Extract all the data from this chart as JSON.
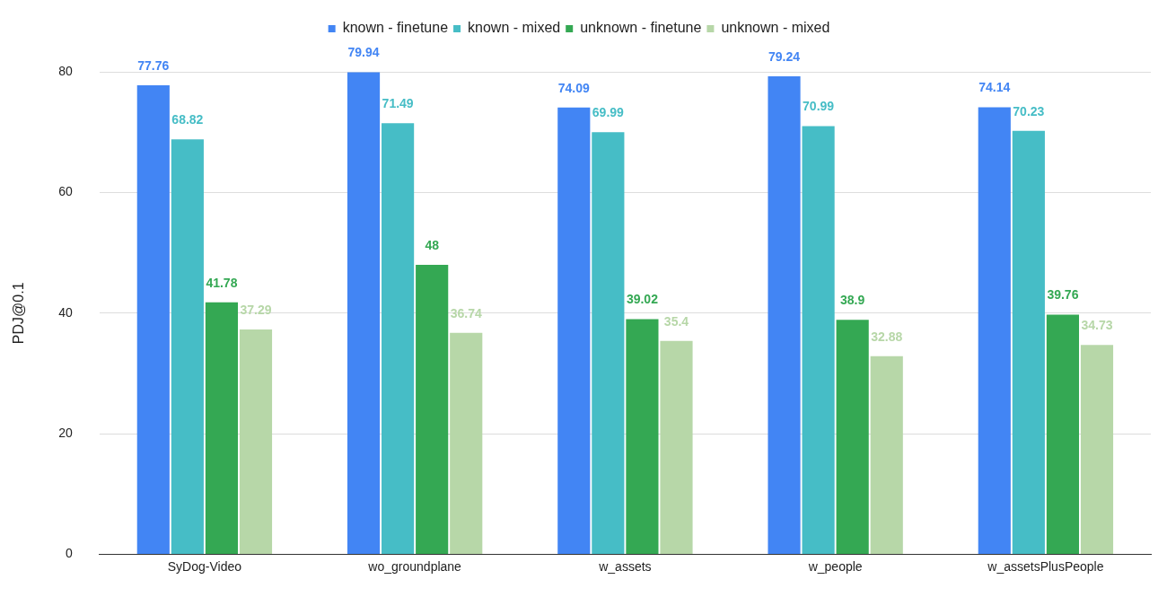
{
  "chart_data": {
    "type": "bar",
    "categories": [
      "SyDog-Video",
      "wo_groundplane",
      "w_assets",
      "w_people",
      "w_assetsPlusPeople"
    ],
    "series": [
      {
        "name": "known - finetune",
        "color": "#4285f4",
        "values": [
          77.76,
          79.94,
          74.09,
          79.24,
          74.14
        ]
      },
      {
        "name": "known - mixed",
        "color": "#46bdc6",
        "values": [
          68.82,
          71.49,
          69.99,
          70.99,
          70.23
        ]
      },
      {
        "name": "unknown - finetune",
        "color": "#34a853",
        "values": [
          41.78,
          48,
          39.02,
          38.9,
          39.76
        ]
      },
      {
        "name": "unknown - mixed",
        "color": "#b7d7a8",
        "values": [
          37.29,
          36.74,
          35.4,
          32.88,
          34.73
        ]
      }
    ],
    "ylabel": "PDJ@0.1",
    "ylim": [
      0,
      80
    ],
    "yticks": [
      0,
      20,
      40,
      60,
      80
    ],
    "grid": "y",
    "legend": "top",
    "data_labels": true
  }
}
